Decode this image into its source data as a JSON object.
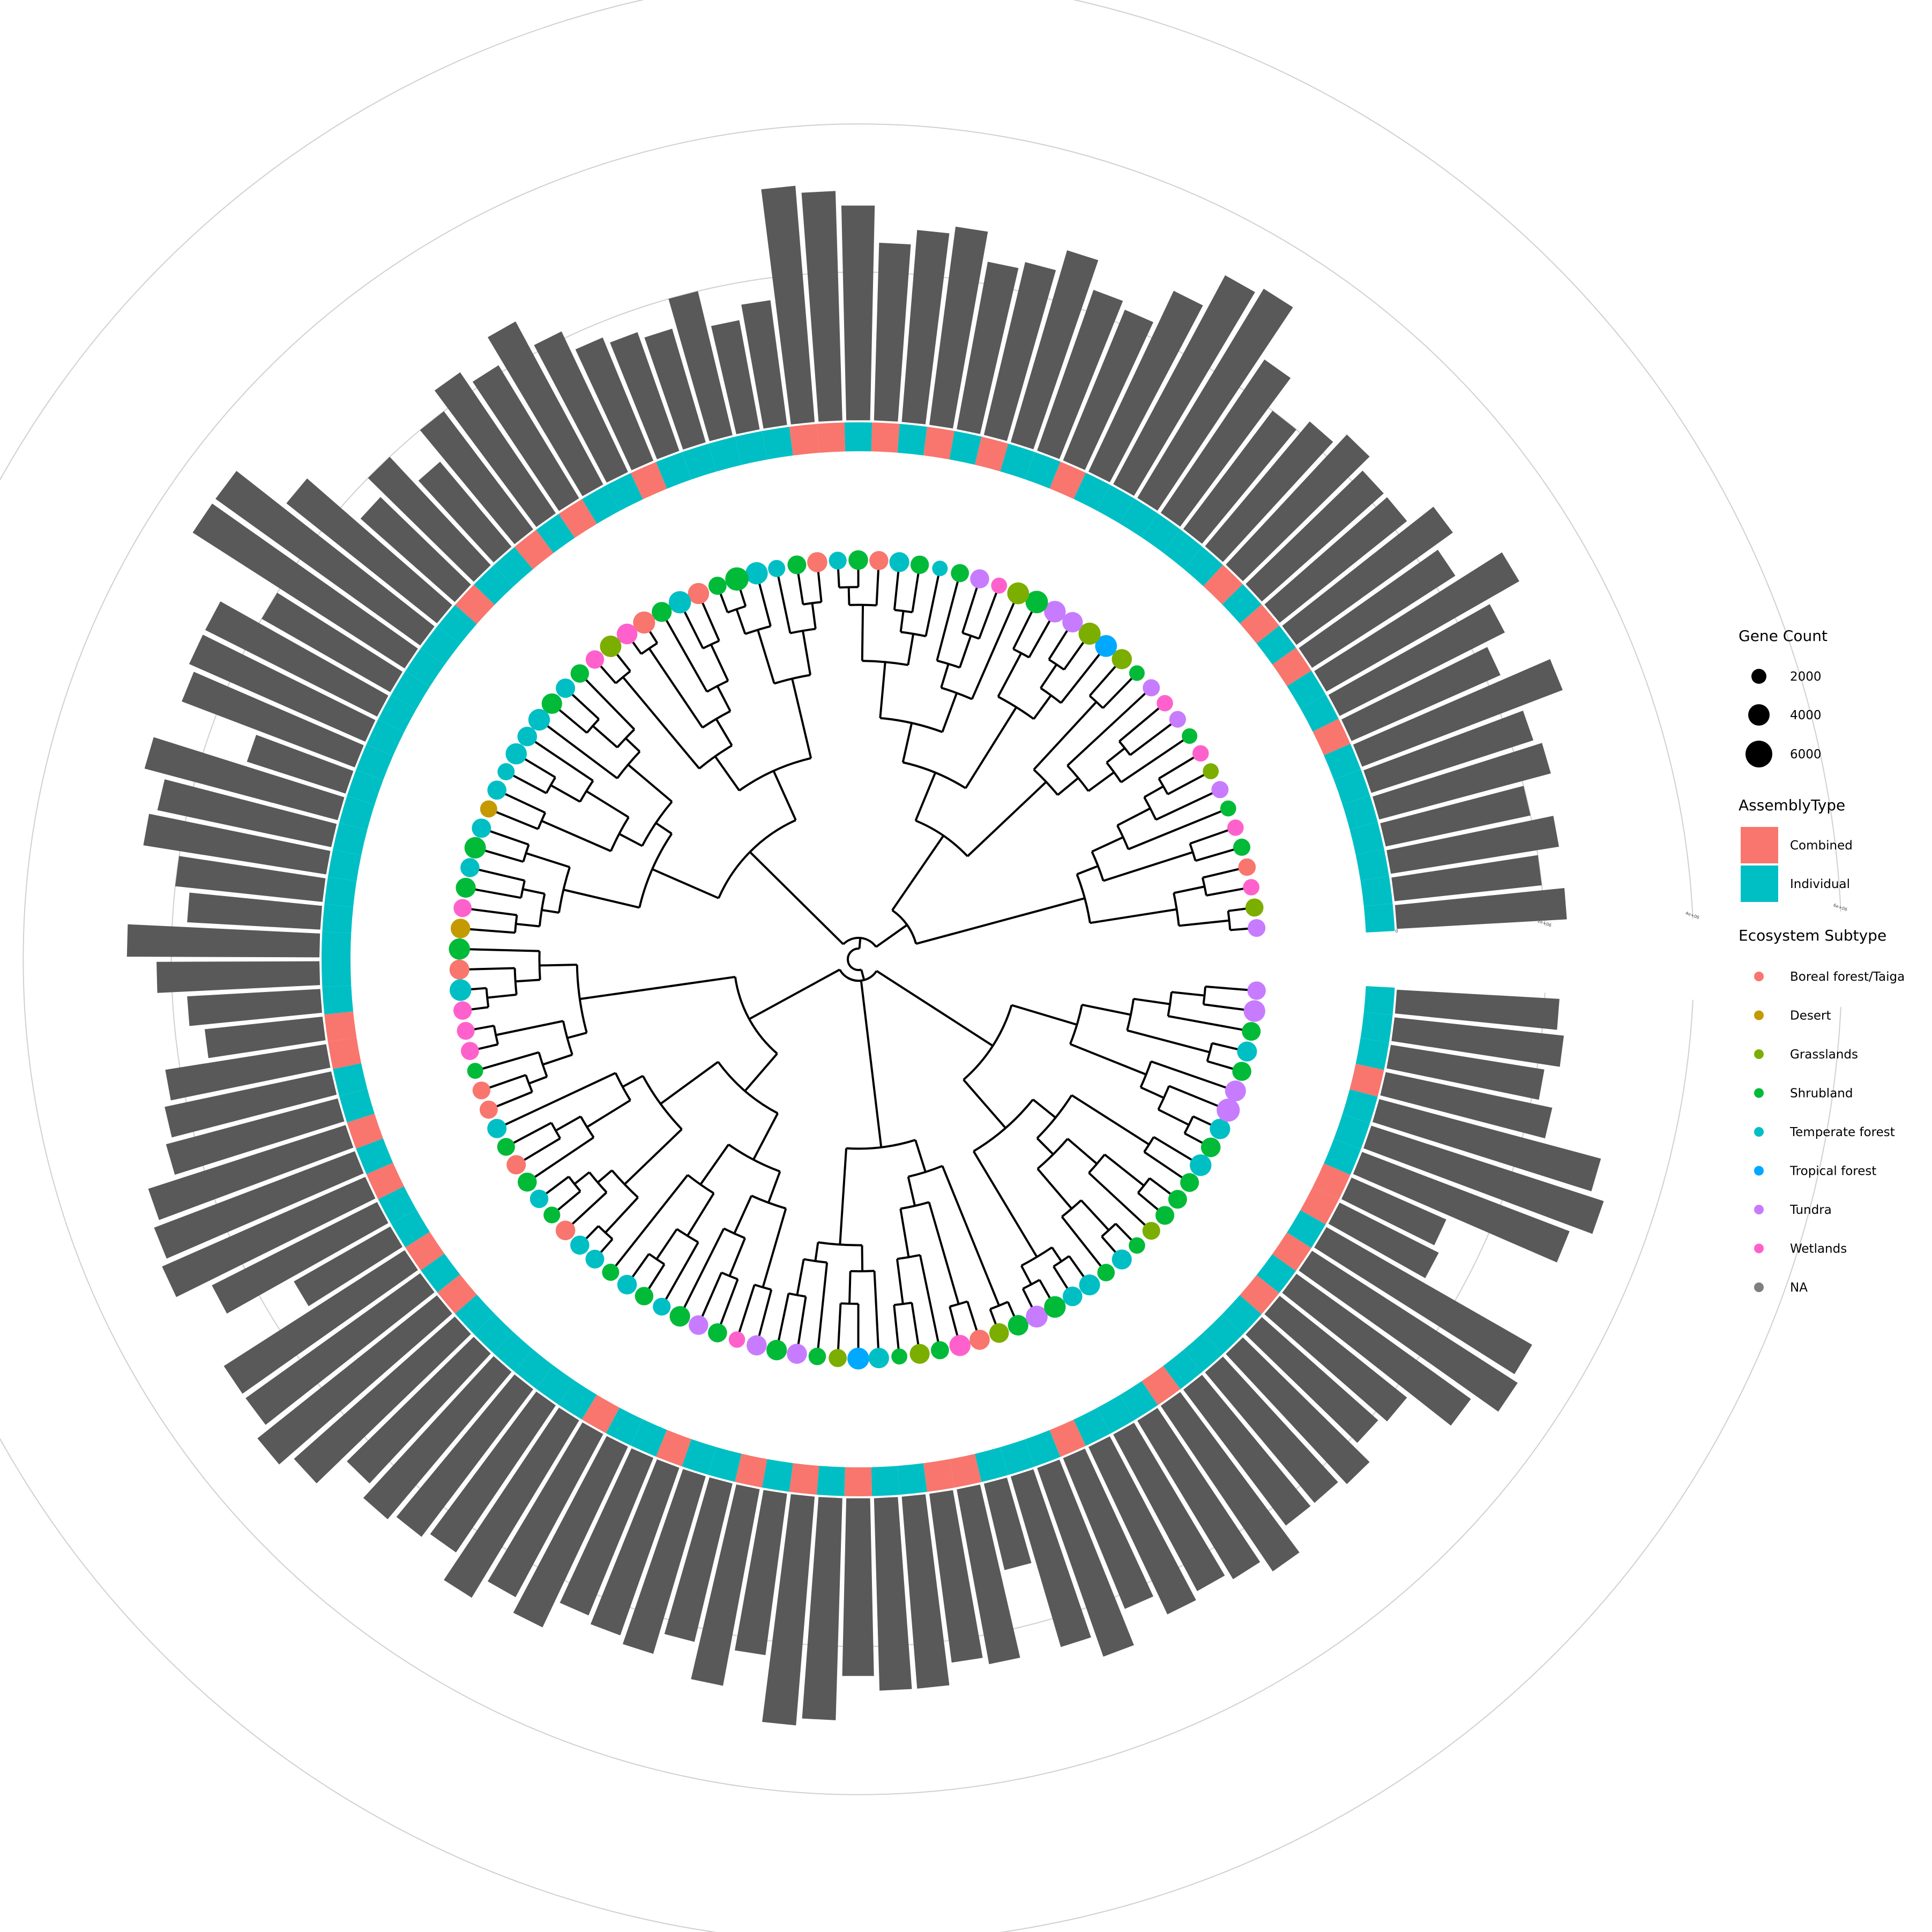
{
  "chart_data": {
    "type": "circular-phylogenetic-tree",
    "tip_count": 120,
    "colors": {
      "Combined": "#F8766D",
      "Individual": "#00BFC4",
      "Boreal forest/Taiga": "#F8766D",
      "Desert": "#C49A00",
      "Grasslands": "#7CAE00",
      "Shrubland": "#00BA38",
      "Temperate forest": "#00BFC4",
      "Tropical forest": "#00A9FF",
      "Tundra": "#C77CFF",
      "Wetlands": "#FF61CC",
      "NA": "#7F7F7F",
      "bar": "#595959",
      "tree": "#000000",
      "ring": "#d0d0d0"
    },
    "bar_axis_ticks": [
      "0",
      "2e+06",
      "4e+06",
      "6e+06"
    ],
    "bar_axis_max": 6000000,
    "tip_ecosystem": [
      "Tundra",
      "Grasslands",
      "Wetlands",
      "Boreal forest/Taiga",
      "Shrubland",
      "Wetlands",
      "Shrubland",
      "Tundra",
      "Grasslands",
      "Wetlands",
      "Shrubland",
      "Tundra",
      "Wetlands",
      "Tundra",
      "Shrubland",
      "Grasslands",
      "Tropical forest",
      "Grasslands",
      "Tundra",
      "Tundra",
      "Shrubland",
      "Grasslands",
      "Wetlands",
      "Tundra",
      "Shrubland",
      "Temperate forest",
      "Shrubland",
      "Temperate forest",
      "Boreal forest/Taiga",
      "Shrubland",
      "Temperate forest",
      "Boreal forest/Taiga",
      "Shrubland",
      "Temperate forest",
      "Temperate forest",
      "Shrubland",
      "Shrubland",
      "Boreal forest/Taiga",
      "Temperate forest",
      "Shrubland",
      "Boreal forest/Taiga",
      "Wetlands",
      "Grasslands",
      "Wetlands",
      "Shrubland",
      "Temperate forest",
      "Shrubland",
      "Temperate forest",
      "Temperate forest",
      "Temperate forest",
      "Temperate forest",
      "Temperate forest",
      "Desert",
      "Temperate forest",
      "Shrubland",
      "Temperate forest",
      "Shrubland",
      "Wetlands",
      "Desert",
      "Shrubland",
      "Boreal forest/Taiga",
      "Temperate forest",
      "Wetlands",
      "Wetlands",
      "Wetlands",
      "Shrubland",
      "Boreal forest/Taiga",
      "Boreal forest/Taiga",
      "Temperate forest",
      "Shrubland",
      "Boreal forest/Taiga",
      "Shrubland",
      "Temperate forest",
      "Shrubland",
      "Boreal forest/Taiga",
      "Temperate forest",
      "Temperate forest",
      "Shrubland",
      "Temperate forest",
      "Shrubland",
      "Temperate forest",
      "Shrubland",
      "Tundra",
      "Shrubland",
      "Wetlands",
      "Tundra",
      "Shrubland",
      "Tundra",
      "Shrubland",
      "Grasslands",
      "Tropical forest",
      "Temperate forest",
      "Shrubland",
      "Grasslands",
      "Shrubland",
      "Wetlands",
      "Boreal forest/Taiga",
      "Grasslands",
      "Shrubland",
      "Tundra",
      "Shrubland",
      "Temperate forest",
      "Temperate forest",
      "Shrubland",
      "Temperate forest",
      "Shrubland",
      "Grasslands",
      "Shrubland",
      "Shrubland",
      "Shrubland",
      "Temperate forest",
      "Shrubland",
      "Temperate forest",
      "Tundra",
      "Tundra",
      "Shrubland",
      "Temperate forest",
      "Shrubland",
      "Tundra",
      "Tundra"
    ],
    "tip_gene_count": [
      1400,
      1500,
      1000,
      1300,
      1200,
      1000,
      900,
      1200,
      900,
      1000,
      800,
      1100,
      1000,
      1200,
      800,
      2200,
      2900,
      3000,
      2300,
      2800,
      3200,
      2900,
      900,
      1800,
      1500,
      800,
      1600,
      2100,
      1800,
      2000,
      1400,
      2200,
      1700,
      1200,
      3100,
      3600,
      1500,
      2600,
      3100,
      2100,
      3000,
      2400,
      2700,
      1600,
      1600,
      1900,
      2300,
      2800,
      2000,
      2600,
      1200,
      1800,
      1200,
      1900,
      2700,
      1800,
      2100,
      1500,
      2000,
      2600,
      2100,
      2800,
      1600,
      1400,
      1500,
      900,
      1400,
      1500,
      1900,
      1400,
      1900,
      1800,
      1600,
      1100,
      2000,
      1800,
      1700,
      1200,
      2000,
      1600,
      1400,
      2300,
      2000,
      1800,
      1000,
      2200,
      2300,
      2200,
      1300,
      1500,
      2900,
      2300,
      900,
      2100,
      1500,
      2600,
      2200,
      2000,
      2300,
      2900,
      2800,
      2000,
      2500,
      1300,
      2100,
      1000,
      1400,
      1700,
      1700,
      1700,
      2800,
      2000,
      2300,
      3500,
      2500,
      1800,
      2100,
      1700,
      2800,
      1600
    ],
    "tip_assembly": [
      "Individual",
      "Individual",
      "Individual",
      "Individual",
      "Individual",
      "Individual",
      "Individual",
      "Combined",
      "Individual",
      "Individual",
      "Combined",
      "Individual",
      "Combined",
      "Individual",
      "Combined",
      "Individual",
      "Individual",
      "Individual",
      "Individual",
      "Individual",
      "Individual",
      "Combined",
      "Individual",
      "Individual",
      "Combined",
      "Individual",
      "Combined",
      "Individual",
      "Combined",
      "Individual",
      "Combined",
      "Combined",
      "Individual",
      "Individual",
      "Individual",
      "Individual",
      "Individual",
      "Combined",
      "Individual",
      "Individual",
      "Combined",
      "Individual",
      "Combined",
      "Individual",
      "Individual",
      "Combined",
      "Individual",
      "Individual",
      "Individual",
      "Individual",
      "Individual",
      "Individual",
      "Individual",
      "Individual",
      "Individual",
      "Individual",
      "Individual",
      "Individual",
      "Individual",
      "Individual",
      "Individual",
      "Individual",
      "Combined",
      "Combined",
      "Individual",
      "Individual",
      "Combined",
      "Individual",
      "Combined",
      "Individual",
      "Individual",
      "Combined",
      "Individual",
      "Combined",
      "Individual",
      "Individual",
      "Individual",
      "Individual",
      "Individual",
      "Individual",
      "Combined",
      "Individual",
      "Individual",
      "Combined",
      "Individual",
      "Individual",
      "Combined",
      "Individual",
      "Combined",
      "Individual",
      "Combined",
      "Individual",
      "Individual",
      "Combined",
      "Combined",
      "Individual",
      "Individual",
      "Individual",
      "Combined",
      "Individual",
      "Individual",
      "Individual",
      "Combined",
      "Individual",
      "Individual",
      "Individual",
      "Individual",
      "Combined",
      "Individual",
      "Combined",
      "Individual",
      "Combined",
      "Combined",
      "Individual",
      "Individual",
      "Individual",
      "Combined",
      "Individual",
      "Individual",
      "Individual"
    ],
    "tip_bar_value": [
      2300000,
      2000000,
      2300000,
      2000000,
      2400000,
      2300000,
      2900000,
      2200000,
      2500000,
      3000000,
      2300000,
      2600000,
      2200000,
      2200000,
      2400000,
      2200000,
      2000000,
      2500000,
      3300000,
      3200000,
      2700000,
      2200000,
      2300000,
      2700000,
      2400000,
      2300000,
      2700000,
      2600000,
      2400000,
      2900000,
      3100000,
      3200000,
      1700000,
      1500000,
      2000000,
      1600000,
      1700000,
      1800000,
      2100000,
      2500000,
      2100000,
      2300000,
      2000000,
      1500000,
      2000000,
      1700000,
      2600000,
      3400000,
      3400000,
      2000000,
      2600000,
      2600000,
      2500000,
      1400000,
      2700000,
      2400000,
      2500000,
      2000000,
      1800000,
      2600000,
      2200000,
      1800000,
      1600000,
      2200000,
      2300000,
      2400000,
      2800000,
      2900000,
      3000000,
      2500000,
      1500000,
      2900000,
      2900000,
      3100000,
      2900000,
      2400000,
      2600000,
      2500000,
      2400000,
      2800000,
      2500000,
      2700000,
      2300000,
      2400000,
      2500000,
      2200000,
      2700000,
      2200000,
      3100000,
      3000000,
      2400000,
      2600000,
      2600000,
      2300000,
      2400000,
      1200000,
      2400000,
      2700000,
      2200000,
      2500000,
      2400000,
      2500000,
      2700000,
      2300000,
      2300000,
      2400000,
      2100000,
      2200000,
      2900000,
      3300000,
      3200000,
      1500000,
      1400000,
      3000000,
      3300000,
      3100000,
      2300000,
      2100000,
      2300000,
      2200000
    ]
  },
  "legend": {
    "gene_count": {
      "title": "Gene Count",
      "items": [
        {
          "label": "2000",
          "value": 2000
        },
        {
          "label": "4000",
          "value": 4000
        },
        {
          "label": "6000",
          "value": 6000
        }
      ]
    },
    "assembly": {
      "title": "AssemblyType",
      "items": [
        {
          "label": "Combined",
          "key": "Combined"
        },
        {
          "label": "Individual",
          "key": "Individual"
        }
      ]
    },
    "ecosystem": {
      "title": "Ecosystem Subtype",
      "items": [
        {
          "label": "Boreal forest/Taiga",
          "key": "Boreal forest/Taiga"
        },
        {
          "label": "Desert",
          "key": "Desert"
        },
        {
          "label": "Grasslands",
          "key": "Grasslands"
        },
        {
          "label": "Shrubland",
          "key": "Shrubland"
        },
        {
          "label": "Temperate forest",
          "key": "Temperate forest"
        },
        {
          "label": "Tropical forest",
          "key": "Tropical forest"
        },
        {
          "label": "Tundra",
          "key": "Tundra"
        },
        {
          "label": "Wetlands",
          "key": "Wetlands"
        },
        {
          "label": "NA",
          "key": "NA"
        }
      ]
    }
  }
}
